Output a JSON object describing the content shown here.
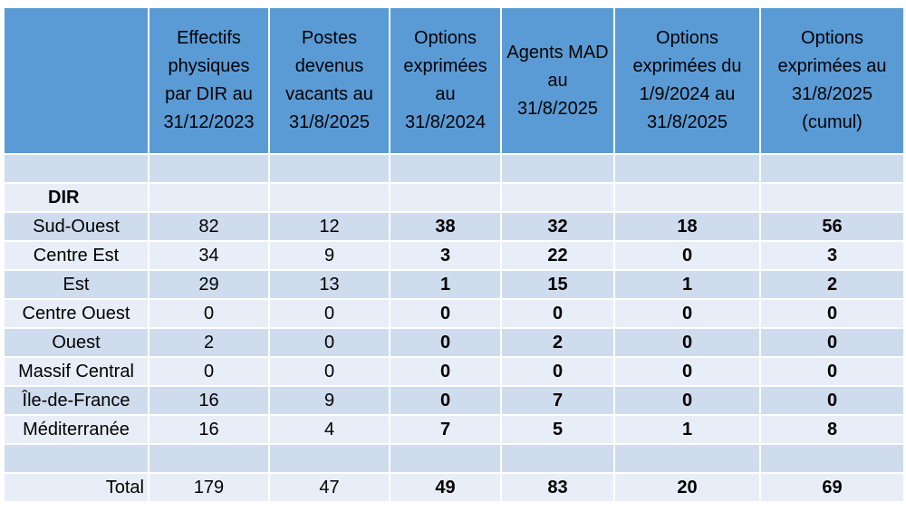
{
  "header": {
    "columns": [
      "Effectifs physiques par DIR au 31/12/2023",
      "Postes devenus vacants au 31/8/2025",
      "Options exprimées au 31/8/2024",
      "Agents MAD au 31/8/2025",
      "Options exprimées du 1/9/2024 au 31/8/2025",
      "Options exprimées au 31/8/2025 (cumul)"
    ]
  },
  "section_label": "DIR",
  "rows": [
    {
      "label": "Sud-Ouest",
      "values": [
        82,
        12,
        38,
        32,
        18,
        56
      ]
    },
    {
      "label": "Centre Est",
      "values": [
        34,
        9,
        3,
        22,
        0,
        3
      ]
    },
    {
      "label": "Est",
      "values": [
        29,
        13,
        1,
        15,
        1,
        2
      ]
    },
    {
      "label": "Centre Ouest",
      "values": [
        0,
        0,
        0,
        0,
        0,
        0
      ]
    },
    {
      "label": "Ouest",
      "values": [
        2,
        0,
        0,
        2,
        0,
        0
      ]
    },
    {
      "label": "Massif Central",
      "values": [
        0,
        0,
        0,
        0,
        0,
        0
      ]
    },
    {
      "label": "Île-de-France",
      "values": [
        16,
        9,
        0,
        7,
        0,
        0
      ]
    },
    {
      "label": "Méditerranée",
      "values": [
        16,
        4,
        7,
        5,
        1,
        8
      ]
    }
  ],
  "total": {
    "label": "Total",
    "values": [
      179,
      47,
      49,
      83,
      20,
      69
    ]
  }
}
